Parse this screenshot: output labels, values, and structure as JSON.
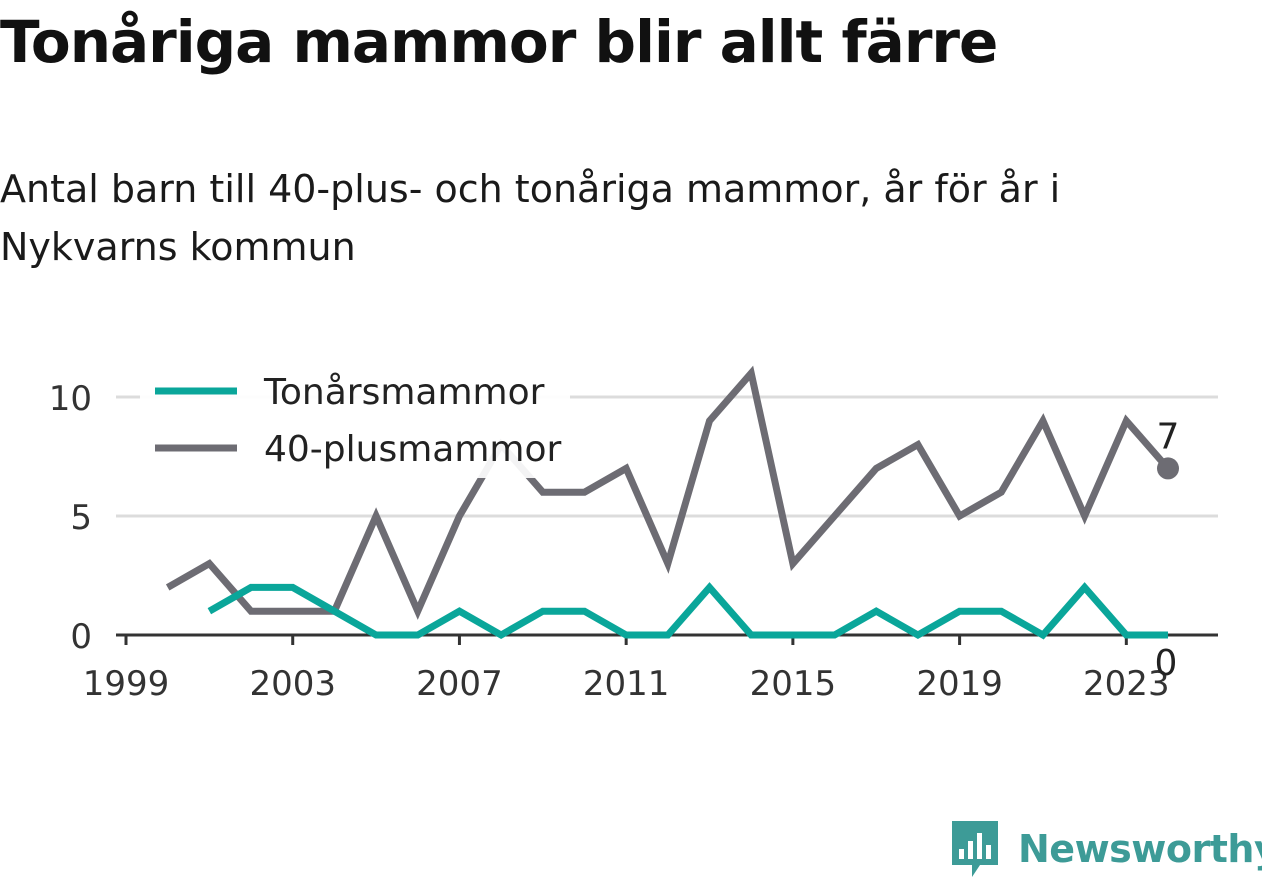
{
  "title": "Tonåriga mammor blir allt färre",
  "subtitle": "Antal barn till 40-plus- och tonåriga mammor, år för år i Nykvarns kommun",
  "brand": {
    "name": "Newsworthy",
    "logo_icon": "bar-chart-speech-bubble-icon",
    "color": "#3d9b97"
  },
  "chart_data": {
    "type": "line",
    "x_ticks": [
      1999,
      2003,
      2007,
      2011,
      2015,
      2019,
      2023
    ],
    "y_ticks": [
      0,
      5,
      10
    ],
    "xlim": [
      1999,
      2024
    ],
    "ylim": [
      0,
      11
    ],
    "grid": true,
    "legend_position": "top-left",
    "series": [
      {
        "name": "Tonårsmammor",
        "color": "#0aa69a",
        "x": [
          2001,
          2002,
          2003,
          2004,
          2005,
          2006,
          2007,
          2008,
          2009,
          2010,
          2011,
          2012,
          2013,
          2014,
          2015,
          2016,
          2017,
          2018,
          2019,
          2020,
          2021,
          2022,
          2023,
          2024
        ],
        "values": [
          1,
          2,
          2,
          1,
          0,
          0,
          1,
          0,
          1,
          1,
          0,
          0,
          2,
          0,
          0,
          0,
          1,
          0,
          1,
          1,
          0,
          2,
          0,
          0
        ],
        "end_label": "0"
      },
      {
        "name": "40-plusmammor",
        "color": "#6d6c73",
        "x": [
          2000,
          2001,
          2002,
          2003,
          2004,
          2005,
          2006,
          2007,
          2008,
          2009,
          2010,
          2011,
          2012,
          2013,
          2014,
          2015,
          2016,
          2017,
          2018,
          2019,
          2020,
          2021,
          2022,
          2023,
          2024
        ],
        "values": [
          2,
          3,
          1,
          1,
          1,
          5,
          1,
          5,
          8,
          6,
          6,
          7,
          3,
          9,
          11,
          3,
          5,
          7,
          8,
          5,
          6,
          9,
          5,
          9,
          7
        ],
        "end_label": "7"
      }
    ]
  }
}
